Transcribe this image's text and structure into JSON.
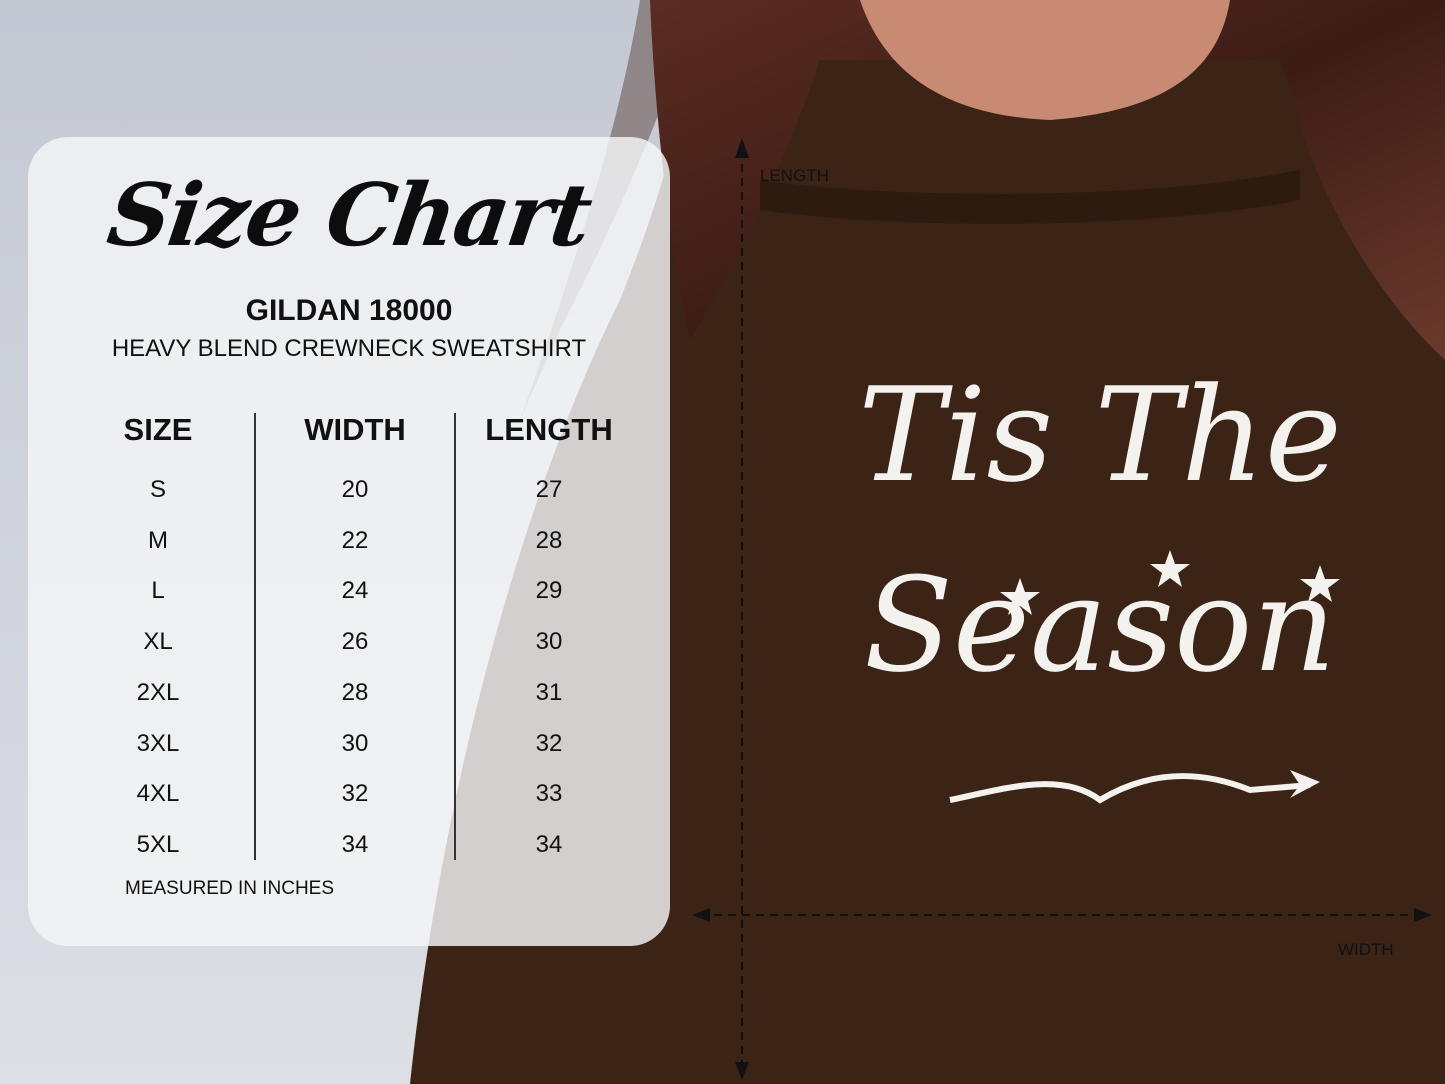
{
  "size_chart": {
    "title": "Size Chart",
    "brand": "GILDAN 18000",
    "product": "HEAVY BLEND CREWNECK SWEATSHIRT",
    "columns": [
      "SIZE",
      "WIDTH",
      "LENGTH"
    ],
    "rows": [
      [
        "S",
        "20",
        "27"
      ],
      [
        "M",
        "22",
        "28"
      ],
      [
        "L",
        "24",
        "29"
      ],
      [
        "XL",
        "26",
        "30"
      ],
      [
        "2XL",
        "28",
        "31"
      ],
      [
        "3XL",
        "30",
        "32"
      ],
      [
        "4XL",
        "32",
        "33"
      ],
      [
        "5XL",
        "34",
        "34"
      ]
    ],
    "footnote": "MEASURED IN INCHES"
  },
  "measure_labels": {
    "length": "LENGTH",
    "width": "WIDTH"
  },
  "design_text": {
    "line1": "Tis The",
    "line2": "Season"
  },
  "colors": {
    "sweatshirt": "#3b2416",
    "panel": "#f4f5f7",
    "print": "#f4f2ee"
  }
}
